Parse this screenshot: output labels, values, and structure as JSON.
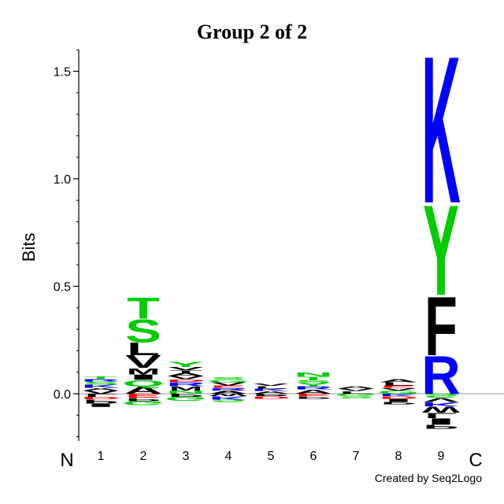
{
  "chart_data": {
    "type": "sequence-logo",
    "title": "Group 2 of 2",
    "ylabel": "Bits",
    "ylim": [
      -0.22,
      1.6
    ],
    "yticks": [
      0.0,
      0.5,
      1.0,
      1.5
    ],
    "ytick_labels": [
      "0.0",
      "0.5",
      "1.0",
      "1.5"
    ],
    "positions": [
      "1",
      "2",
      "3",
      "4",
      "5",
      "6",
      "7",
      "8",
      "9"
    ],
    "n_label": "N",
    "c_label": "C",
    "credit": "Created by Seq2Logo",
    "colors": {
      "green": "#00cc00",
      "blue": "#0000ff",
      "black": "#000000",
      "red": "#ff0000"
    },
    "columns": [
      {
        "position": "1",
        "positive": [
          {
            "letter": "V",
            "bits": 0.015,
            "color": "#000000"
          },
          {
            "letter": "A",
            "bits": 0.012,
            "color": "#000000"
          },
          {
            "letter": "K",
            "bits": 0.015,
            "color": "#0000ff"
          },
          {
            "letter": "S",
            "bits": 0.015,
            "color": "#00cc00"
          },
          {
            "letter": "R",
            "bits": 0.012,
            "color": "#0000ff"
          },
          {
            "letter": "T",
            "bits": 0.012,
            "color": "#00cc00"
          }
        ],
        "negative": [
          {
            "letter": "L",
            "bits": 0.015,
            "color": "#000000"
          },
          {
            "letter": "D",
            "bits": 0.012,
            "color": "#ff0000"
          },
          {
            "letter": "P",
            "bits": 0.02,
            "color": "#000000"
          },
          {
            "letter": "I",
            "bits": 0.015,
            "color": "#000000"
          }
        ]
      },
      {
        "position": "2",
        "positive": [
          {
            "letter": "A",
            "bits": 0.035,
            "color": "#000000"
          },
          {
            "letter": "Q",
            "bits": 0.03,
            "color": "#00cc00"
          },
          {
            "letter": "I",
            "bits": 0.025,
            "color": "#000000"
          },
          {
            "letter": "M",
            "bits": 0.03,
            "color": "#000000"
          },
          {
            "letter": "V",
            "bits": 0.06,
            "color": "#000000"
          },
          {
            "letter": "L",
            "bits": 0.06,
            "color": "#000000"
          },
          {
            "letter": "S",
            "bits": 0.11,
            "color": "#00cc00"
          },
          {
            "letter": "T",
            "bits": 0.1,
            "color": "#00cc00"
          }
        ],
        "negative": [
          {
            "letter": "E",
            "bits": 0.02,
            "color": "#ff0000"
          },
          {
            "letter": "P",
            "bits": 0.015,
            "color": "#000000"
          },
          {
            "letter": "G",
            "bits": 0.02,
            "color": "#00cc00"
          }
        ]
      },
      {
        "position": "3",
        "positive": [
          {
            "letter": "N",
            "bits": 0.015,
            "color": "#00cc00"
          },
          {
            "letter": "M",
            "bits": 0.02,
            "color": "#000000"
          },
          {
            "letter": "R",
            "bits": 0.02,
            "color": "#0000ff"
          },
          {
            "letter": "D",
            "bits": 0.012,
            "color": "#ff0000"
          },
          {
            "letter": "V",
            "bits": 0.015,
            "color": "#000000"
          },
          {
            "letter": "A",
            "bits": 0.015,
            "color": "#000000"
          },
          {
            "letter": "T",
            "bits": 0.012,
            "color": "#000000"
          },
          {
            "letter": "V",
            "bits": 0.015,
            "color": "#000000"
          },
          {
            "letter": "Y",
            "bits": 0.025,
            "color": "#00cc00"
          }
        ],
        "negative": [
          {
            "letter": "P",
            "bits": 0.015,
            "color": "#000000"
          },
          {
            "letter": "G",
            "bits": 0.02,
            "color": "#00cc00"
          }
        ]
      },
      {
        "position": "4",
        "positive": [
          {
            "letter": "A",
            "bits": 0.015,
            "color": "#000000"
          },
          {
            "letter": "R",
            "bits": 0.012,
            "color": "#0000ff"
          },
          {
            "letter": "E",
            "bits": 0.012,
            "color": "#ff0000"
          },
          {
            "letter": "V",
            "bits": 0.015,
            "color": "#000000"
          },
          {
            "letter": "G",
            "bits": 0.012,
            "color": "#00cc00"
          },
          {
            "letter": "S",
            "bits": 0.012,
            "color": "#00cc00"
          }
        ],
        "negative": [
          {
            "letter": "W",
            "bits": 0.012,
            "color": "#000000"
          },
          {
            "letter": "K",
            "bits": 0.015,
            "color": "#0000ff"
          },
          {
            "letter": "S",
            "bits": 0.012,
            "color": "#00cc00"
          }
        ]
      },
      {
        "position": "5",
        "positive": [
          {
            "letter": "A",
            "bits": 0.012,
            "color": "#000000"
          },
          {
            "letter": "K",
            "bits": 0.012,
            "color": "#0000ff"
          },
          {
            "letter": "L",
            "bits": 0.012,
            "color": "#000000"
          },
          {
            "letter": "V",
            "bits": 0.012,
            "color": "#000000"
          }
        ],
        "negative": [
          {
            "letter": "P",
            "bits": 0.012,
            "color": "#000000"
          },
          {
            "letter": "D",
            "bits": 0.012,
            "color": "#ff0000"
          }
        ]
      },
      {
        "position": "6",
        "positive": [
          {
            "letter": "A",
            "bits": 0.02,
            "color": "#000000"
          },
          {
            "letter": "R",
            "bits": 0.015,
            "color": "#0000ff"
          },
          {
            "letter": "Y",
            "bits": 0.015,
            "color": "#00cc00"
          },
          {
            "letter": "S",
            "bits": 0.015,
            "color": "#00cc00"
          },
          {
            "letter": "T",
            "bits": 0.015,
            "color": "#00cc00"
          },
          {
            "letter": "N",
            "bits": 0.02,
            "color": "#00cc00"
          }
        ],
        "negative": [
          {
            "letter": "E",
            "bits": 0.012,
            "color": "#ff0000"
          },
          {
            "letter": "P",
            "bits": 0.012,
            "color": "#000000"
          }
        ]
      },
      {
        "position": "7",
        "positive": [
          {
            "letter": "L",
            "bits": 0.012,
            "color": "#000000"
          },
          {
            "letter": "V",
            "bits": 0.012,
            "color": "#000000"
          },
          {
            "letter": "A",
            "bits": 0.012,
            "color": "#000000"
          }
        ],
        "negative": [
          {
            "letter": "G",
            "bits": 0.012,
            "color": "#00cc00"
          },
          {
            "letter": "S",
            "bits": 0.01,
            "color": "#00cc00"
          }
        ]
      },
      {
        "position": "8",
        "positive": [
          {
            "letter": "G",
            "bits": 0.015,
            "color": "#00cc00"
          },
          {
            "letter": "V",
            "bits": 0.012,
            "color": "#000000"
          },
          {
            "letter": "E",
            "bits": 0.012,
            "color": "#ff0000"
          },
          {
            "letter": "L",
            "bits": 0.015,
            "color": "#000000"
          },
          {
            "letter": "A",
            "bits": 0.015,
            "color": "#000000"
          }
        ],
        "negative": [
          {
            "letter": "K",
            "bits": 0.012,
            "color": "#0000ff"
          },
          {
            "letter": "D",
            "bits": 0.012,
            "color": "#ff0000"
          },
          {
            "letter": "I",
            "bits": 0.015,
            "color": "#000000"
          },
          {
            "letter": "P",
            "bits": 0.012,
            "color": "#000000"
          }
        ]
      },
      {
        "position": "9",
        "positive": [
          {
            "letter": "R",
            "bits": 0.18,
            "color": "#0000ff"
          },
          {
            "letter": "F",
            "bits": 0.28,
            "color": "#000000"
          },
          {
            "letter": "Y",
            "bits": 0.43,
            "color": "#00cc00"
          },
          {
            "letter": "K",
            "bits": 0.7,
            "color": "#0000ff"
          }
        ],
        "negative": [
          {
            "letter": "S",
            "bits": 0.02,
            "color": "#00cc00"
          },
          {
            "letter": "V",
            "bits": 0.02,
            "color": "#000000"
          },
          {
            "letter": "K",
            "bits": 0.02,
            "color": "#0000ff"
          },
          {
            "letter": "W",
            "bits": 0.03,
            "color": "#000000"
          },
          {
            "letter": "L",
            "bits": 0.025,
            "color": "#000000"
          },
          {
            "letter": "I",
            "bits": 0.03,
            "color": "#000000"
          },
          {
            "letter": "P",
            "bits": 0.02,
            "color": "#000000"
          }
        ]
      }
    ]
  }
}
